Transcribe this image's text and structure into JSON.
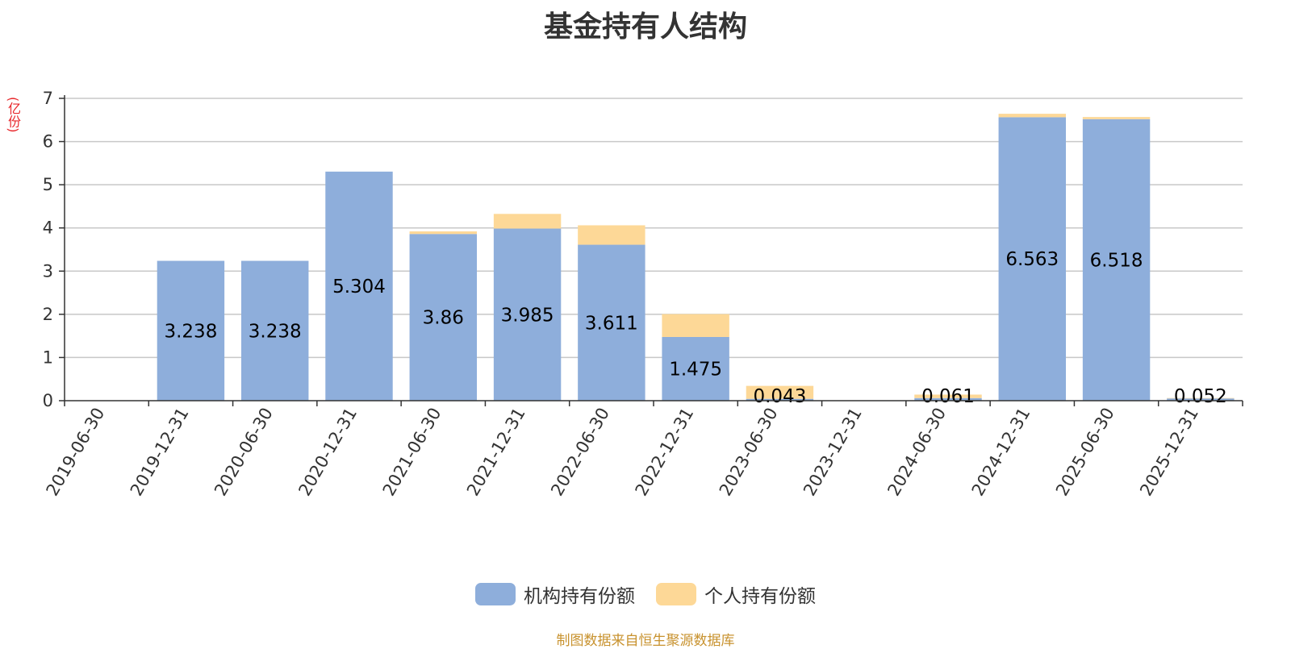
{
  "chart_data": {
    "type": "bar",
    "stacked": true,
    "title": "基金持有人结构",
    "ylabel": "(亿份)",
    "ylim": [
      0,
      7
    ],
    "yticks": [
      0,
      1,
      2,
      3,
      4,
      5,
      6,
      7
    ],
    "grid": true,
    "legend_position": "bottom",
    "categories": [
      "2019-06-30",
      "2019-12-31",
      "2020-06-30",
      "2020-12-31",
      "2021-06-30",
      "2021-12-31",
      "2022-06-30",
      "2022-12-31",
      "2023-06-30",
      "2023-12-31",
      "2024-06-30",
      "2024-12-31",
      "2025-06-30",
      "2025-12-31"
    ],
    "series": [
      {
        "name": "机构持有份额",
        "color": "#8eaedb",
        "values": [
          0,
          3.238,
          3.238,
          5.304,
          3.86,
          3.985,
          3.611,
          1.475,
          0.043,
          0,
          0.061,
          6.563,
          6.518,
          0.052
        ],
        "labels": [
          "",
          "3.238",
          "3.238",
          "5.304",
          "3.86",
          "3.985",
          "3.611",
          "1.475",
          "0.043",
          "",
          "0.061",
          "6.563",
          "6.518",
          "0.052"
        ]
      },
      {
        "name": "个人持有份额",
        "color": "#fdd897",
        "values": [
          0,
          0,
          0,
          0,
          0.06,
          0.34,
          0.45,
          0.53,
          0.3,
          0,
          0.08,
          0.08,
          0.05,
          0.01
        ]
      }
    ]
  },
  "footer": {
    "source": "制图数据来自恒生聚源数据库"
  }
}
